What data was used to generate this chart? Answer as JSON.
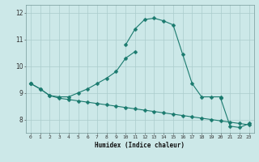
{
  "xlabel": "Humidex (Indice chaleur)",
  "x_values": [
    0,
    1,
    2,
    3,
    4,
    5,
    6,
    7,
    8,
    9,
    10,
    11,
    12,
    13,
    14,
    15,
    16,
    17,
    18,
    19,
    20,
    21,
    22,
    23
  ],
  "line1": [
    9.35,
    9.15,
    8.9,
    8.85,
    8.85,
    9.0,
    9.15,
    9.35,
    9.55,
    9.8,
    10.3,
    10.55,
    null,
    null,
    null,
    null,
    null,
    null,
    null,
    null,
    null,
    null,
    null,
    null
  ],
  "line2": [
    null,
    null,
    null,
    null,
    null,
    null,
    null,
    null,
    null,
    null,
    10.8,
    11.4,
    11.75,
    11.8,
    11.7,
    11.55,
    10.45,
    9.35,
    8.85,
    8.85,
    8.85,
    null,
    null,
    null
  ],
  "line3": [
    9.35,
    null,
    null,
    null,
    null,
    null,
    null,
    null,
    null,
    null,
    null,
    null,
    null,
    null,
    null,
    null,
    null,
    null,
    null,
    null,
    8.8,
    7.75,
    7.7,
    7.85
  ],
  "line4": [
    9.35,
    9.15,
    8.9,
    8.8,
    8.75,
    8.7,
    8.65,
    8.6,
    8.55,
    8.5,
    8.45,
    8.4,
    8.35,
    8.3,
    8.25,
    8.2,
    8.15,
    8.1,
    8.05,
    8.0,
    7.95,
    7.9,
    7.85,
    7.8
  ],
  "line_color": "#1a7a6e",
  "bg_color": "#cce8e8",
  "grid_color_major": "#aacccc",
  "grid_color_minor": "#bbdddd",
  "ylim": [
    7.5,
    12.3
  ],
  "yticks": [
    8,
    9,
    10,
    11,
    12
  ],
  "xlim": [
    -0.5,
    23.5
  ]
}
